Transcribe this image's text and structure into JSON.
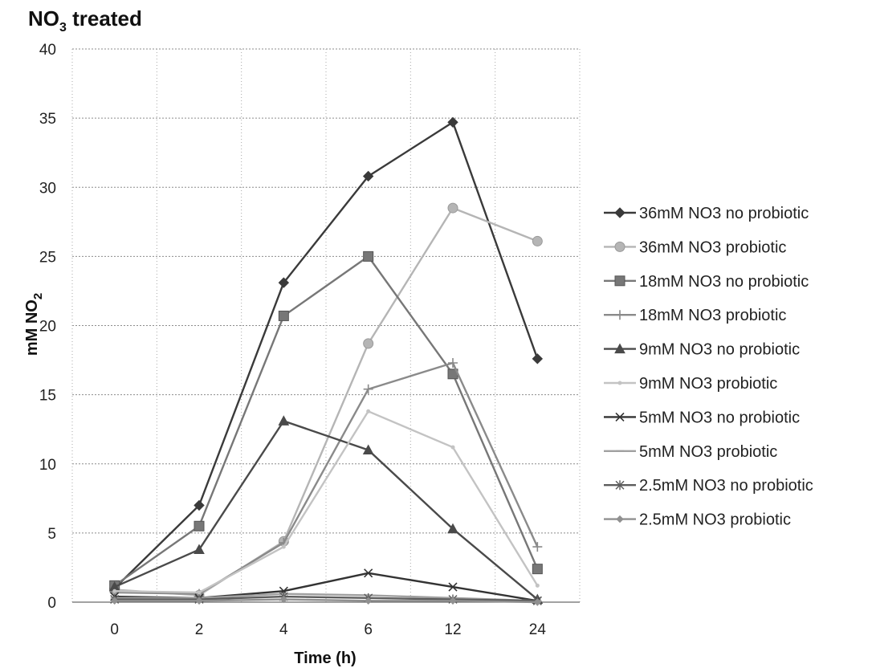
{
  "chart_data": {
    "type": "line",
    "title": "NO",
    "title_subscript": "3",
    "title_suffix": " treated",
    "xlabel": "Time (h)",
    "ylabel": "mM NO",
    "ylabel_subscript": "2",
    "categories": [
      "0",
      "2",
      "4",
      "6",
      "12",
      "24"
    ],
    "ylim": [
      0,
      40
    ],
    "yticks": [
      "0",
      "5",
      "10",
      "15",
      "20",
      "25",
      "30",
      "35",
      "40"
    ],
    "grid": true,
    "legend_position": "right",
    "series": [
      {
        "name": "36mM NO3 no probiotic",
        "values": [
          1.0,
          7.0,
          23.1,
          30.8,
          34.7,
          17.6
        ],
        "color": "#3a3a3a",
        "marker": "diamond"
      },
      {
        "name": "36mM NO3 probiotic",
        "values": [
          0.9,
          0.5,
          4.4,
          18.7,
          28.5,
          26.1
        ],
        "color": "#b5b5b5",
        "marker": "circle"
      },
      {
        "name": "18mM NO3 no probiotic",
        "values": [
          1.2,
          5.5,
          20.7,
          25.0,
          16.5,
          2.4
        ],
        "color": "#777777",
        "marker": "square"
      },
      {
        "name": "18mM NO3 probiotic",
        "values": [
          0.7,
          0.6,
          4.3,
          15.4,
          17.3,
          4.0
        ],
        "color": "#8a8a8a",
        "marker": "plus"
      },
      {
        "name": "9mM NO3 no probiotic",
        "values": [
          1.1,
          3.8,
          13.1,
          11.0,
          5.3,
          0.2
        ],
        "color": "#4a4a4a",
        "marker": "triangle"
      },
      {
        "name": "9mM NO3 probiotic",
        "values": [
          0.8,
          0.7,
          4.0,
          13.8,
          11.2,
          1.2
        ],
        "color": "#c3c3c3",
        "marker": "dot"
      },
      {
        "name": "5mM NO3 no probiotic",
        "values": [
          0.4,
          0.3,
          0.8,
          2.1,
          1.1,
          0.1
        ],
        "color": "#333333",
        "marker": "x"
      },
      {
        "name": "5mM NO3 probiotic",
        "values": [
          0.3,
          0.3,
          0.6,
          0.5,
          0.3,
          0.1
        ],
        "color": "#a0a0a0",
        "marker": "dash"
      },
      {
        "name": "2.5mM NO3 no probiotic",
        "values": [
          0.2,
          0.2,
          0.4,
          0.3,
          0.2,
          0.1
        ],
        "color": "#5c5c5c",
        "marker": "star"
      },
      {
        "name": "2.5mM NO3 probiotic",
        "values": [
          0.1,
          0.1,
          0.2,
          0.1,
          0.1,
          0.0
        ],
        "color": "#909090",
        "marker": "smalldiamond"
      }
    ]
  }
}
